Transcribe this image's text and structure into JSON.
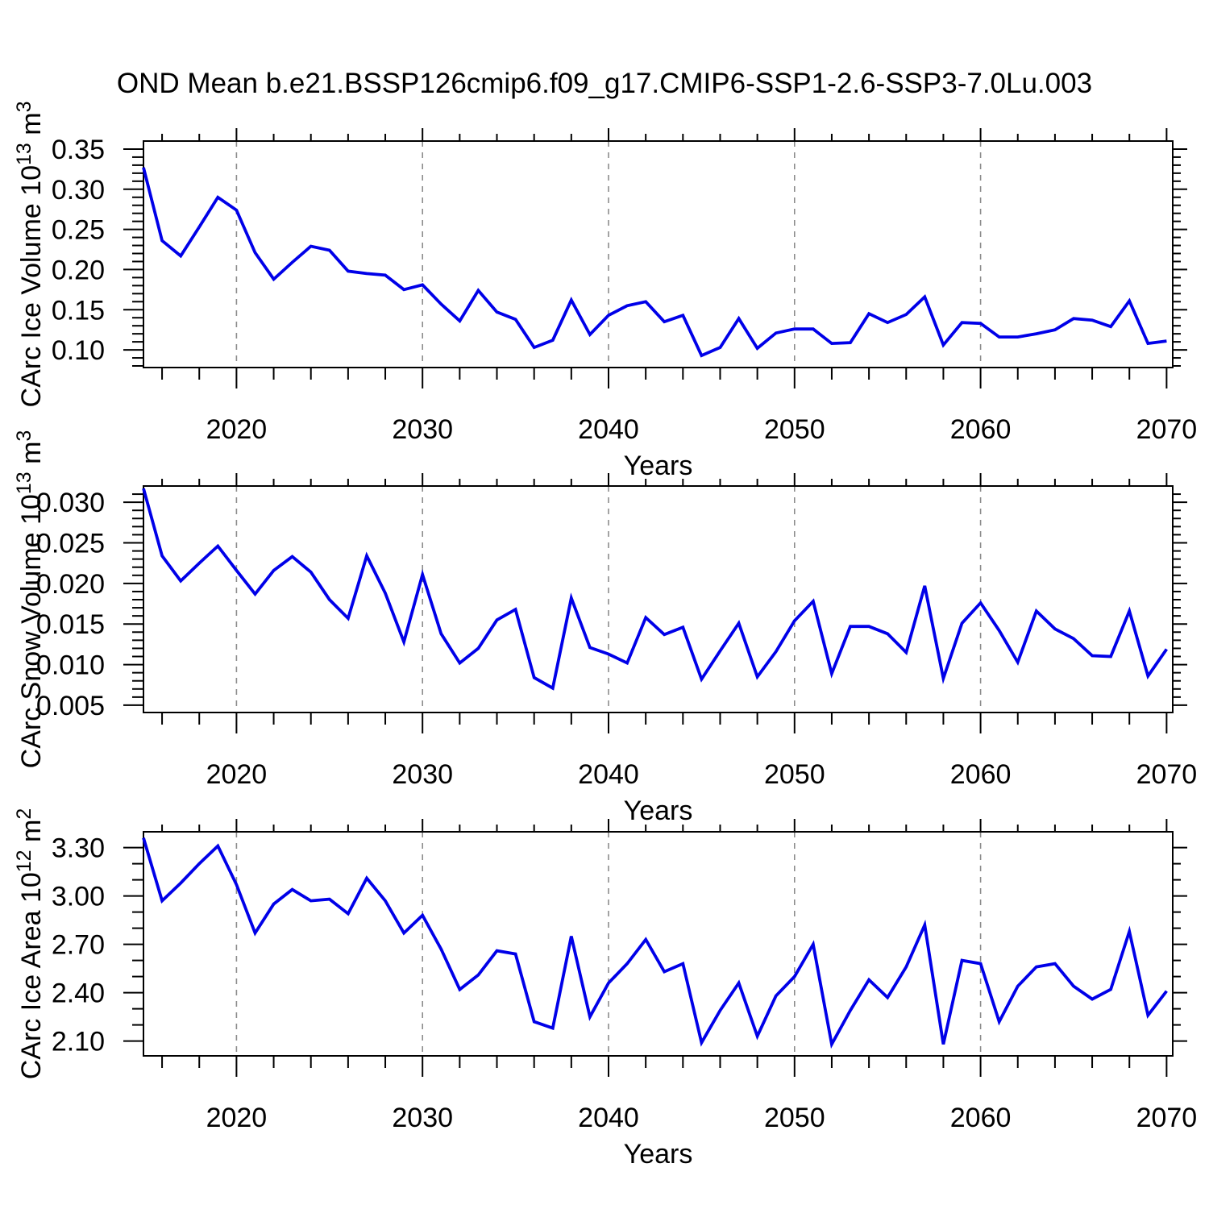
{
  "title": "OND Mean b.e21.BSSP126cmip6.f09_g17.CMIP6-SSP1-2.6-SSP3-7.0Lu.003",
  "style": {
    "line_color": "#0000e8",
    "grid_color": "#8c8c8c",
    "axis_color": "#000000",
    "text_color": "#000000",
    "background": "#ffffff"
  },
  "chart_data": [
    {
      "type": "line",
      "panel_name": "panel-ice-volume",
      "series_name": "ice-volume-line",
      "title": "",
      "xlabel": "Years",
      "ylabel_parts": [
        {
          "t": "CArc Ice Volume 10"
        },
        {
          "t": "13",
          "sup": true
        },
        {
          "t": " m"
        },
        {
          "t": "3",
          "sup": true
        }
      ],
      "x_start": 2015,
      "x_end": 2070,
      "values": [
        0.327,
        0.236,
        0.217,
        0.253,
        0.29,
        0.274,
        0.221,
        0.188,
        0.209,
        0.229,
        0.224,
        0.198,
        0.195,
        0.193,
        0.175,
        0.181,
        0.157,
        0.136,
        0.174,
        0.147,
        0.138,
        0.103,
        0.112,
        0.162,
        0.119,
        0.143,
        0.155,
        0.16,
        0.135,
        0.143,
        0.093,
        0.103,
        0.139,
        0.102,
        0.121,
        0.126,
        0.126,
        0.108,
        0.109,
        0.145,
        0.134,
        0.144,
        0.166,
        0.106,
        0.134,
        0.133,
        0.116,
        0.116,
        0.12,
        0.125,
        0.139,
        0.137,
        0.129,
        0.161,
        0.108,
        0.111
      ],
      "xlim": [
        2015,
        2070.33
      ],
      "ylim": [
        0.078,
        0.36
      ],
      "xticks": [
        2020,
        2030,
        2040,
        2050,
        2060,
        2070
      ],
      "xtick_labels": [
        "2020",
        "2030",
        "2040",
        "2050",
        "2060",
        "2070"
      ],
      "xminor_start": 2016,
      "xminor_step": 2,
      "grid_x": [
        2020,
        2030,
        2040,
        2050,
        2060
      ],
      "yticks": [
        0.1,
        0.15,
        0.2,
        0.25,
        0.3,
        0.35
      ],
      "ytick_labels": [
        "0.10",
        "0.15",
        "0.20",
        "0.25",
        "0.30",
        "0.35"
      ],
      "yminor_start": 0.08,
      "yminor_step": 0.01,
      "legend": null
    },
    {
      "type": "line",
      "panel_name": "panel-snow-volume",
      "series_name": "snow-volume-line",
      "title": "",
      "xlabel": "Years",
      "ylabel_parts": [
        {
          "t": "CArc Snow Volume 10"
        },
        {
          "t": "13",
          "sup": true
        },
        {
          "t": " m"
        },
        {
          "t": "3",
          "sup": true
        }
      ],
      "x_start": 2015,
      "x_end": 2070,
      "values": [
        0.0317,
        0.0234,
        0.0203,
        0.0225,
        0.0246,
        0.0216,
        0.0187,
        0.0216,
        0.0233,
        0.0214,
        0.018,
        0.0157,
        0.0234,
        0.0188,
        0.0128,
        0.0211,
        0.0138,
        0.0102,
        0.012,
        0.0155,
        0.0168,
        0.0084,
        0.0071,
        0.0182,
        0.0121,
        0.0113,
        0.0102,
        0.0158,
        0.0137,
        0.0146,
        0.0082,
        0.0117,
        0.0151,
        0.0085,
        0.0116,
        0.0154,
        0.0178,
        0.0089,
        0.0147,
        0.0147,
        0.0138,
        0.0115,
        0.0197,
        0.0083,
        0.0151,
        0.0176,
        0.0142,
        0.0103,
        0.0166,
        0.0144,
        0.0132,
        0.0111,
        0.011,
        0.0166,
        0.0086,
        0.0119
      ],
      "xlim": [
        2015,
        2070.33
      ],
      "ylim": [
        0.0041,
        0.032
      ],
      "xticks": [
        2020,
        2030,
        2040,
        2050,
        2060,
        2070
      ],
      "xtick_labels": [
        "2020",
        "2030",
        "2040",
        "2050",
        "2060",
        "2070"
      ],
      "xminor_start": 2016,
      "xminor_step": 2,
      "grid_x": [
        2020,
        2030,
        2040,
        2050,
        2060
      ],
      "yticks": [
        0.005,
        0.01,
        0.015,
        0.02,
        0.025,
        0.03
      ],
      "ytick_labels": [
        "0.005",
        "0.010",
        "0.015",
        "0.020",
        "0.025",
        "0.030"
      ],
      "yminor_start": 0.005,
      "yminor_step": 0.001,
      "legend": null
    },
    {
      "type": "line",
      "panel_name": "panel-ice-area",
      "series_name": "ice-area-line",
      "title": "",
      "xlabel": "Years",
      "ylabel_parts": [
        {
          "t": "CArc Ice Area 10"
        },
        {
          "t": "12",
          "sup": true
        },
        {
          "t": " m"
        },
        {
          "t": "2",
          "sup": true
        }
      ],
      "x_start": 2015,
      "x_end": 2070,
      "values": [
        3.36,
        2.97,
        3.08,
        3.2,
        3.31,
        3.07,
        2.77,
        2.95,
        3.04,
        2.97,
        2.98,
        2.89,
        3.11,
        2.97,
        2.77,
        2.88,
        2.67,
        2.42,
        2.51,
        2.66,
        2.64,
        2.22,
        2.18,
        2.75,
        2.25,
        2.46,
        2.58,
        2.73,
        2.53,
        2.58,
        2.09,
        2.29,
        2.46,
        2.13,
        2.38,
        2.5,
        2.7,
        2.08,
        2.29,
        2.48,
        2.37,
        2.56,
        2.82,
        2.08,
        2.6,
        2.58,
        2.22,
        2.44,
        2.56,
        2.58,
        2.44,
        2.36,
        2.42,
        2.78,
        2.26,
        2.41
      ],
      "xlim": [
        2015,
        2070.33
      ],
      "ylim": [
        2.008,
        3.398
      ],
      "xticks": [
        2020,
        2030,
        2040,
        2050,
        2060,
        2070
      ],
      "xtick_labels": [
        "2020",
        "2030",
        "2040",
        "2050",
        "2060",
        "2070"
      ],
      "xminor_start": 2016,
      "xminor_step": 2,
      "grid_x": [
        2020,
        2030,
        2040,
        2050,
        2060
      ],
      "yticks": [
        2.1,
        2.4,
        2.7,
        3.0,
        3.3
      ],
      "ytick_labels": [
        "2.10",
        "2.40",
        "2.70",
        "3.00",
        "3.30"
      ],
      "yminor_start": 2.0,
      "yminor_step": 0.1,
      "legend": null
    }
  ]
}
